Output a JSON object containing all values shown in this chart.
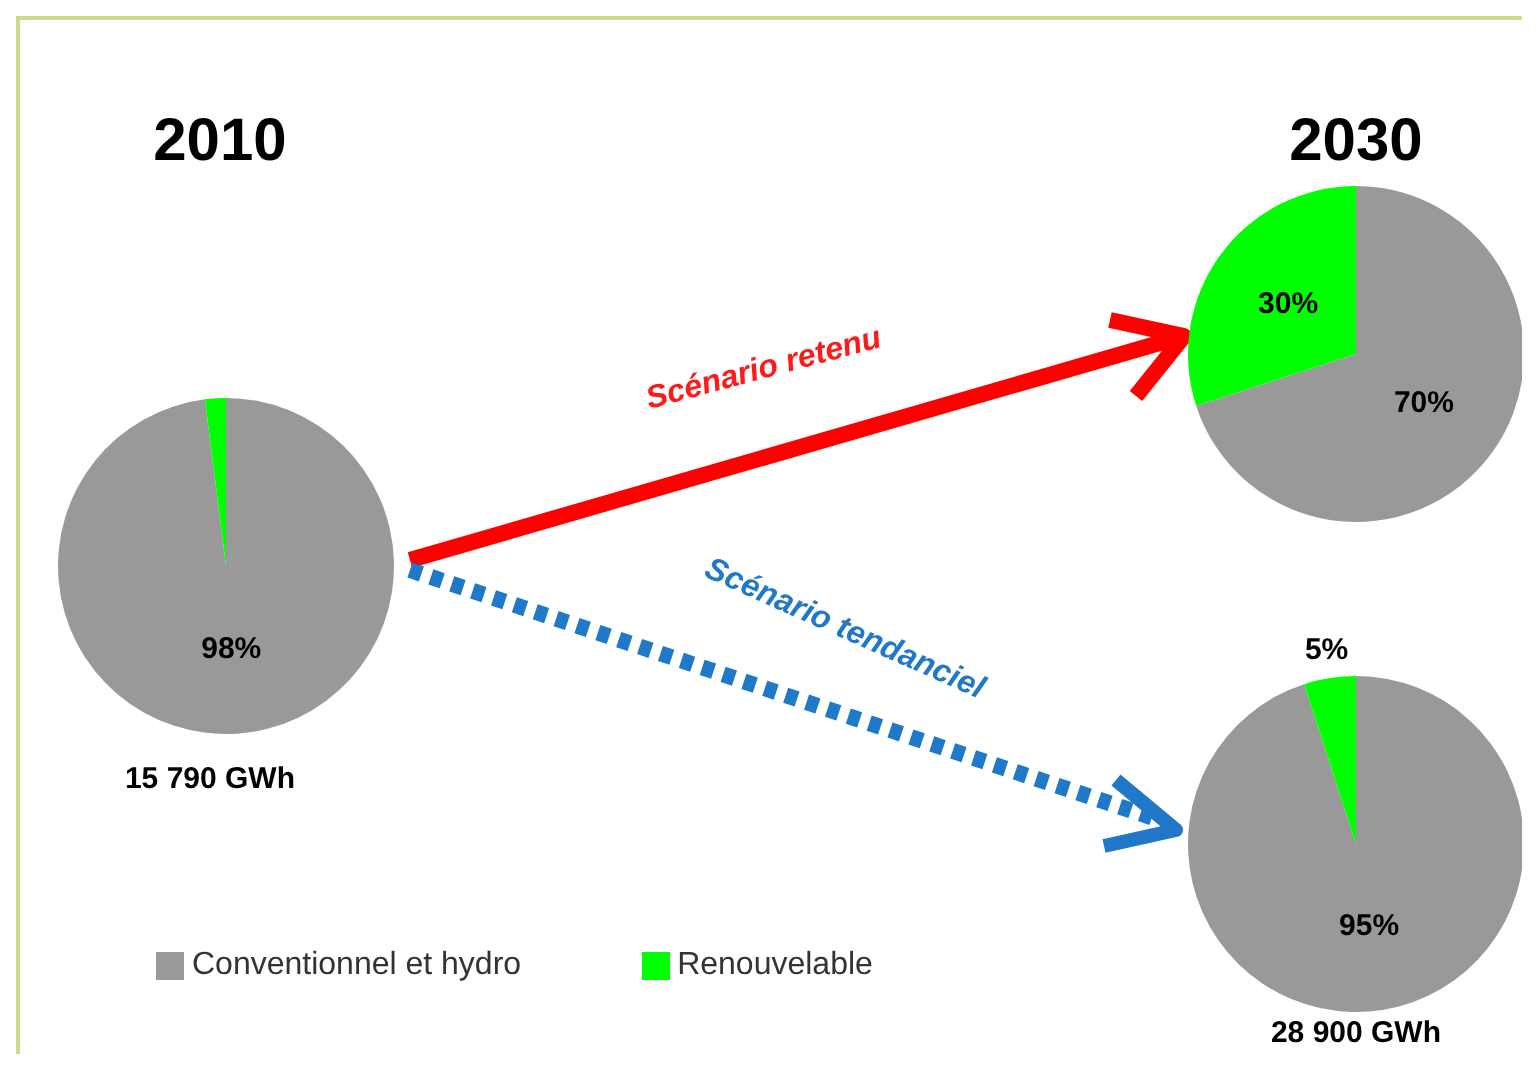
{
  "chart_data": [
    {
      "type": "pie",
      "title": "2010",
      "categories": [
        "Conventionnel et hydro",
        "Renouvelable"
      ],
      "values": [
        98,
        2
      ],
      "colors": [
        "#999999",
        "#00ff00"
      ],
      "value_labels": [
        "98%",
        null
      ],
      "annotations": [
        "15 790 GWh"
      ],
      "legend": "bottom"
    },
    {
      "type": "pie",
      "title": "2030",
      "categories": [
        null,
        null
      ],
      "values": [
        70,
        30
      ],
      "colors": [
        "#999999",
        "#00ff00"
      ],
      "value_labels": [
        "70%",
        "30%"
      ],
      "annotations": [
        "Scénario retenu"
      ]
    },
    {
      "type": "pie",
      "categories": [
        null,
        null
      ],
      "values": [
        95,
        5
      ],
      "colors": [
        "#999999",
        "#00ff00"
      ],
      "value_labels": [
        "95%",
        "5%"
      ],
      "annotations": [
        "Scénario tendanciel",
        "28 900 GWh"
      ]
    }
  ]
}
